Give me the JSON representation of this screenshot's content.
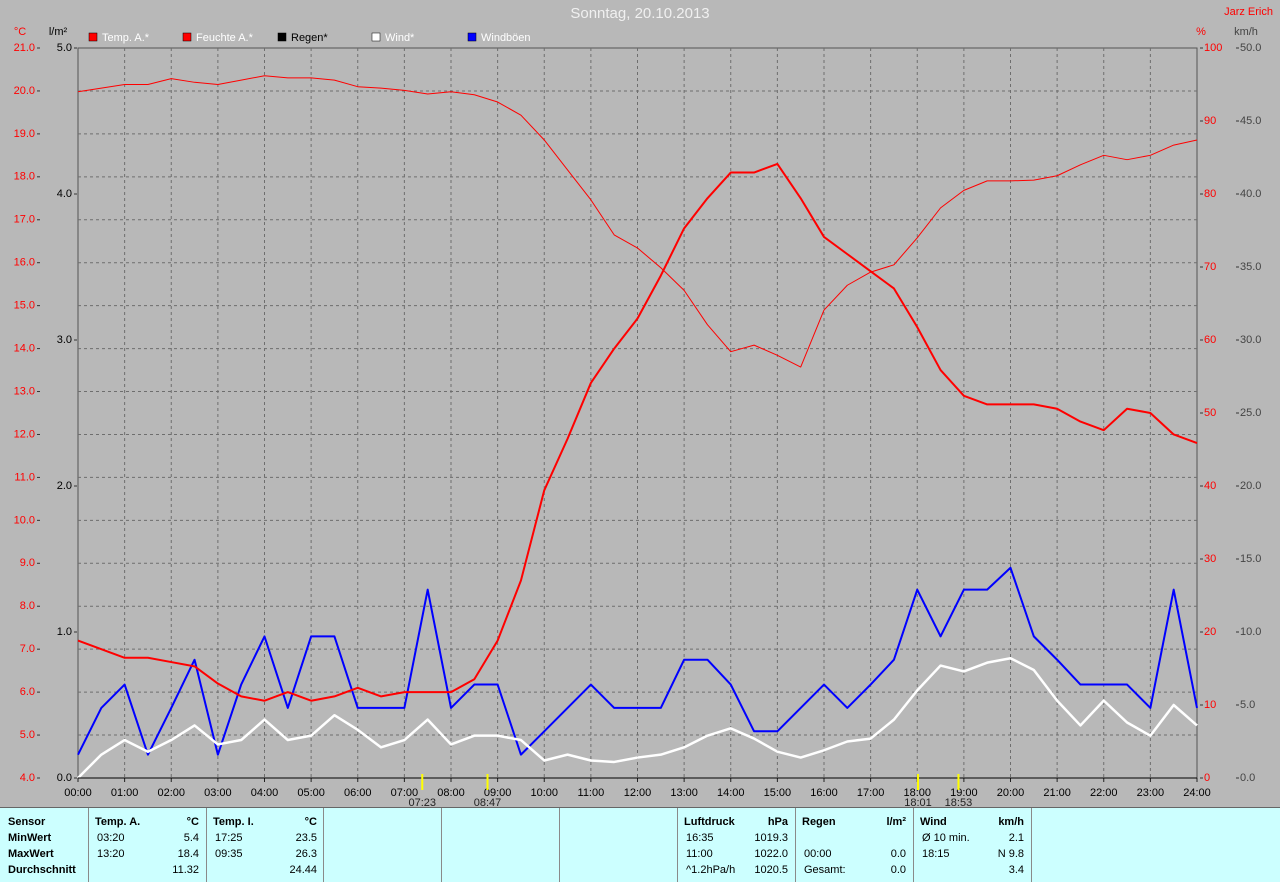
{
  "chart_data": {
    "type": "line",
    "title": "Sonntag, 20.10.2013",
    "author": "Jarz Erich",
    "y_label": "°C",
    "y3_label": "l/m²",
    "y2_label": "%",
    "y4_label": "km/h",
    "x": [
      0,
      0.5,
      1,
      1.5,
      2,
      2.5,
      3,
      3.5,
      4,
      4.5,
      5,
      5.5,
      6,
      6.5,
      7,
      7.5,
      8,
      8.5,
      9,
      9.5,
      10,
      10.5,
      11,
      11.5,
      12,
      12.5,
      13,
      13.5,
      14,
      14.5,
      15,
      15.5,
      16,
      16.5,
      17,
      17.5,
      18,
      18.5,
      19,
      19.5,
      20,
      20.5,
      21,
      21.5,
      22,
      22.5,
      23,
      23.5,
      24
    ],
    "xlim": [
      0,
      24
    ],
    "xticks": [
      {
        "value": 0,
        "label": "00:00"
      },
      {
        "value": 1,
        "label": "01:00"
      },
      {
        "value": 2,
        "label": "02:00"
      },
      {
        "value": 3,
        "label": "03:00"
      },
      {
        "value": 4,
        "label": "04:00"
      },
      {
        "value": 5,
        "label": "05:00"
      },
      {
        "value": 6,
        "label": "06:00"
      },
      {
        "value": 7,
        "label": "07:00"
      },
      {
        "value": 8,
        "label": "08:00"
      },
      {
        "value": 9,
        "label": "09:00"
      },
      {
        "value": 10,
        "label": "10:00"
      },
      {
        "value": 11,
        "label": "11:00"
      },
      {
        "value": 12,
        "label": "12:00"
      },
      {
        "value": 13,
        "label": "13:00"
      },
      {
        "value": 14,
        "label": "14:00"
      },
      {
        "value": 15,
        "label": "15:00"
      },
      {
        "value": 16,
        "label": "16:00"
      },
      {
        "value": 17,
        "label": "17:00"
      },
      {
        "value": 18,
        "label": "18:00"
      },
      {
        "value": 19,
        "label": "19:00"
      },
      {
        "value": 20,
        "label": "20:00"
      },
      {
        "value": 21,
        "label": "21:00"
      },
      {
        "value": 22,
        "label": "22:00"
      },
      {
        "value": 23,
        "label": "23:00"
      },
      {
        "value": 24,
        "label": "24:00"
      }
    ],
    "ylim": [
      4,
      21
    ],
    "yticks": [
      {
        "value": 4,
        "label": "4.0"
      },
      {
        "value": 5,
        "label": "5.0"
      },
      {
        "value": 6,
        "label": "6.0"
      },
      {
        "value": 7,
        "label": "7.0"
      },
      {
        "value": 8,
        "label": "8.0"
      },
      {
        "value": 9,
        "label": "9.0"
      },
      {
        "value": 10,
        "label": "10.0"
      },
      {
        "value": 11,
        "label": "11.0"
      },
      {
        "value": 12,
        "label": "12.0"
      },
      {
        "value": 13,
        "label": "13.0"
      },
      {
        "value": 14,
        "label": "14.0"
      },
      {
        "value": 15,
        "label": "15.0"
      },
      {
        "value": 16,
        "label": "16.0"
      },
      {
        "value": 17,
        "label": "17.0"
      },
      {
        "value": 18,
        "label": "18.0"
      },
      {
        "value": 19,
        "label": "19.0"
      },
      {
        "value": 20,
        "label": "20.0"
      },
      {
        "value": 21,
        "label": "21.0"
      }
    ],
    "y3lim": [
      0,
      5
    ],
    "y3ticks": [
      {
        "value": 0,
        "label": "0.0"
      },
      {
        "value": 1,
        "label": "1.0"
      },
      {
        "value": 2,
        "label": "2.0"
      },
      {
        "value": 3,
        "label": "3.0"
      },
      {
        "value": 4,
        "label": "4.0"
      },
      {
        "value": 5,
        "label": "5.0"
      }
    ],
    "y2lim": [
      0,
      100
    ],
    "y2ticks": [
      0,
      10,
      20,
      30,
      40,
      50,
      60,
      70,
      80,
      90,
      100
    ],
    "y4lim": [
      0,
      50
    ],
    "y4ticks": [
      {
        "value": 0,
        "label": "0.0"
      },
      {
        "value": 5,
        "label": "5.0"
      },
      {
        "value": 10,
        "label": "10.0"
      },
      {
        "value": 15,
        "label": "15.0"
      },
      {
        "value": 20,
        "label": "20.0"
      },
      {
        "value": 25,
        "label": "25.0"
      },
      {
        "value": 30,
        "label": "30.0"
      },
      {
        "value": 35,
        "label": "35.0"
      },
      {
        "value": 40,
        "label": "40.0"
      },
      {
        "value": 45,
        "label": "45.0"
      },
      {
        "value": 50,
        "label": "50.0"
      }
    ],
    "grid": true,
    "series": [
      {
        "name": "Temp. A.*",
        "color": "#ff0000",
        "axis": "y",
        "values": [
          7.2,
          7.0,
          6.8,
          6.8,
          6.7,
          6.6,
          6.2,
          5.9,
          5.8,
          6.0,
          5.8,
          5.9,
          6.1,
          5.9,
          6.0,
          6.0,
          6.0,
          6.3,
          7.2,
          8.6,
          10.7,
          11.9,
          13.2,
          14.0,
          14.7,
          15.7,
          16.8,
          17.5,
          18.1,
          18.1,
          18.3,
          17.5,
          16.6,
          16.2,
          15.8,
          15.4,
          14.5,
          13.5,
          12.9,
          12.7,
          12.7,
          12.7,
          12.6,
          12.3,
          12.1,
          12.6,
          12.5,
          12.0,
          11.8
        ]
      },
      {
        "name": "Feuchte A.*",
        "color": "#ff0000",
        "axis": "y2",
        "values": [
          94,
          94.5,
          95,
          95,
          95.8,
          95.3,
          95,
          95.6,
          96.2,
          95.9,
          95.9,
          95.6,
          94.7,
          94.5,
          94.2,
          93.7,
          94,
          93.6,
          92.6,
          90.8,
          87.4,
          83.3,
          79.2,
          74.4,
          72.6,
          69.9,
          66.8,
          62.1,
          58.4,
          59.3,
          57.9,
          56.3,
          64.1,
          67.5,
          69.3,
          70.3,
          74,
          78.1,
          80.5,
          81.8,
          81.8,
          81.9,
          82.5,
          84,
          85.3,
          84.7,
          85.3,
          86.7,
          87.4
        ]
      },
      {
        "name": "Regen*",
        "color": "#000000",
        "axis": "y3",
        "values": [
          0,
          0,
          0,
          0,
          0,
          0,
          0,
          0,
          0,
          0,
          0,
          0,
          0,
          0,
          0,
          0,
          0,
          0,
          0,
          0,
          0,
          0,
          0,
          0,
          0,
          0,
          0,
          0,
          0,
          0,
          0,
          0,
          0,
          0,
          0,
          0,
          0,
          0,
          0,
          0,
          0,
          0,
          0,
          0,
          0,
          0,
          0,
          0,
          0
        ]
      },
      {
        "name": "Wind*",
        "color": "#ffffff",
        "axis": "y4",
        "values": [
          0,
          1.6,
          2.6,
          1.8,
          2.6,
          3.6,
          2.3,
          2.6,
          4.0,
          2.6,
          2.9,
          4.3,
          3.3,
          2.1,
          2.6,
          4.0,
          2.3,
          2.9,
          2.9,
          2.6,
          1.2,
          1.6,
          1.2,
          1.1,
          1.4,
          1.6,
          2.1,
          2.9,
          3.4,
          2.7,
          1.8,
          1.4,
          1.9,
          2.5,
          2.7,
          4.0,
          6.0,
          7.7,
          7.3,
          7.9,
          8.2,
          7.4,
          5.3,
          3.6,
          5.3,
          3.8,
          2.9,
          5.0,
          3.6
        ]
      },
      {
        "name": "Windböen",
        "color": "#0000ff",
        "axis": "y4",
        "values": [
          1.6,
          4.8,
          6.4,
          1.6,
          4.8,
          8.1,
          1.6,
          6.4,
          9.7,
          4.8,
          9.7,
          9.7,
          4.8,
          4.8,
          4.8,
          12.9,
          4.8,
          6.4,
          6.4,
          1.6,
          3.2,
          4.8,
          6.4,
          4.8,
          4.8,
          4.8,
          8.1,
          8.1,
          6.4,
          3.2,
          3.2,
          4.8,
          6.4,
          4.8,
          6.4,
          8.1,
          12.9,
          9.7,
          12.9,
          12.9,
          14.4,
          9.7,
          8.1,
          6.4,
          6.4,
          6.4,
          4.8,
          12.9,
          4.8
        ]
      }
    ],
    "annotations": [
      {
        "label": "07:23",
        "x": 7.3833
      },
      {
        "label": "08:47",
        "x": 8.7833
      },
      {
        "label": "18:01",
        "x": 18.0167
      },
      {
        "label": "18:53",
        "x": 18.8833
      }
    ]
  },
  "summary": {
    "row_labels": [
      "Sensor",
      "MinWert",
      "MaxWert",
      "Durchschnitt"
    ],
    "groups": [
      {
        "title": "Temp. A.",
        "unit": "°C",
        "rows": [
          [
            "03:20",
            "5.4"
          ],
          [
            "13:20",
            "18.4"
          ],
          [
            null,
            "11.32"
          ]
        ]
      },
      {
        "title": "Temp. I.",
        "unit": "°C",
        "rows": [
          [
            "17:25",
            "23.5"
          ],
          [
            "09:35",
            "26.3"
          ],
          [
            null,
            "24.44"
          ]
        ]
      },
      {
        "title": "Luftdruck",
        "unit": "hPa",
        "rows": [
          [
            "16:35",
            "1019.3"
          ],
          [
            "11:00",
            "1022.0"
          ],
          [
            "^1.2hPa/h",
            "1020.5"
          ]
        ]
      },
      {
        "title": "Regen",
        "unit": "l/m²",
        "rows": [
          [
            null,
            null
          ],
          [
            "00:00",
            "0.0"
          ],
          [
            "Gesamt:",
            "0.0"
          ]
        ]
      },
      {
        "title": "Wind",
        "unit": "km/h",
        "rows": [
          [
            "Ø 10 min.",
            "2.1"
          ],
          [
            "18:15",
            "N 9.8"
          ],
          [
            null,
            "3.4"
          ]
        ]
      }
    ]
  }
}
